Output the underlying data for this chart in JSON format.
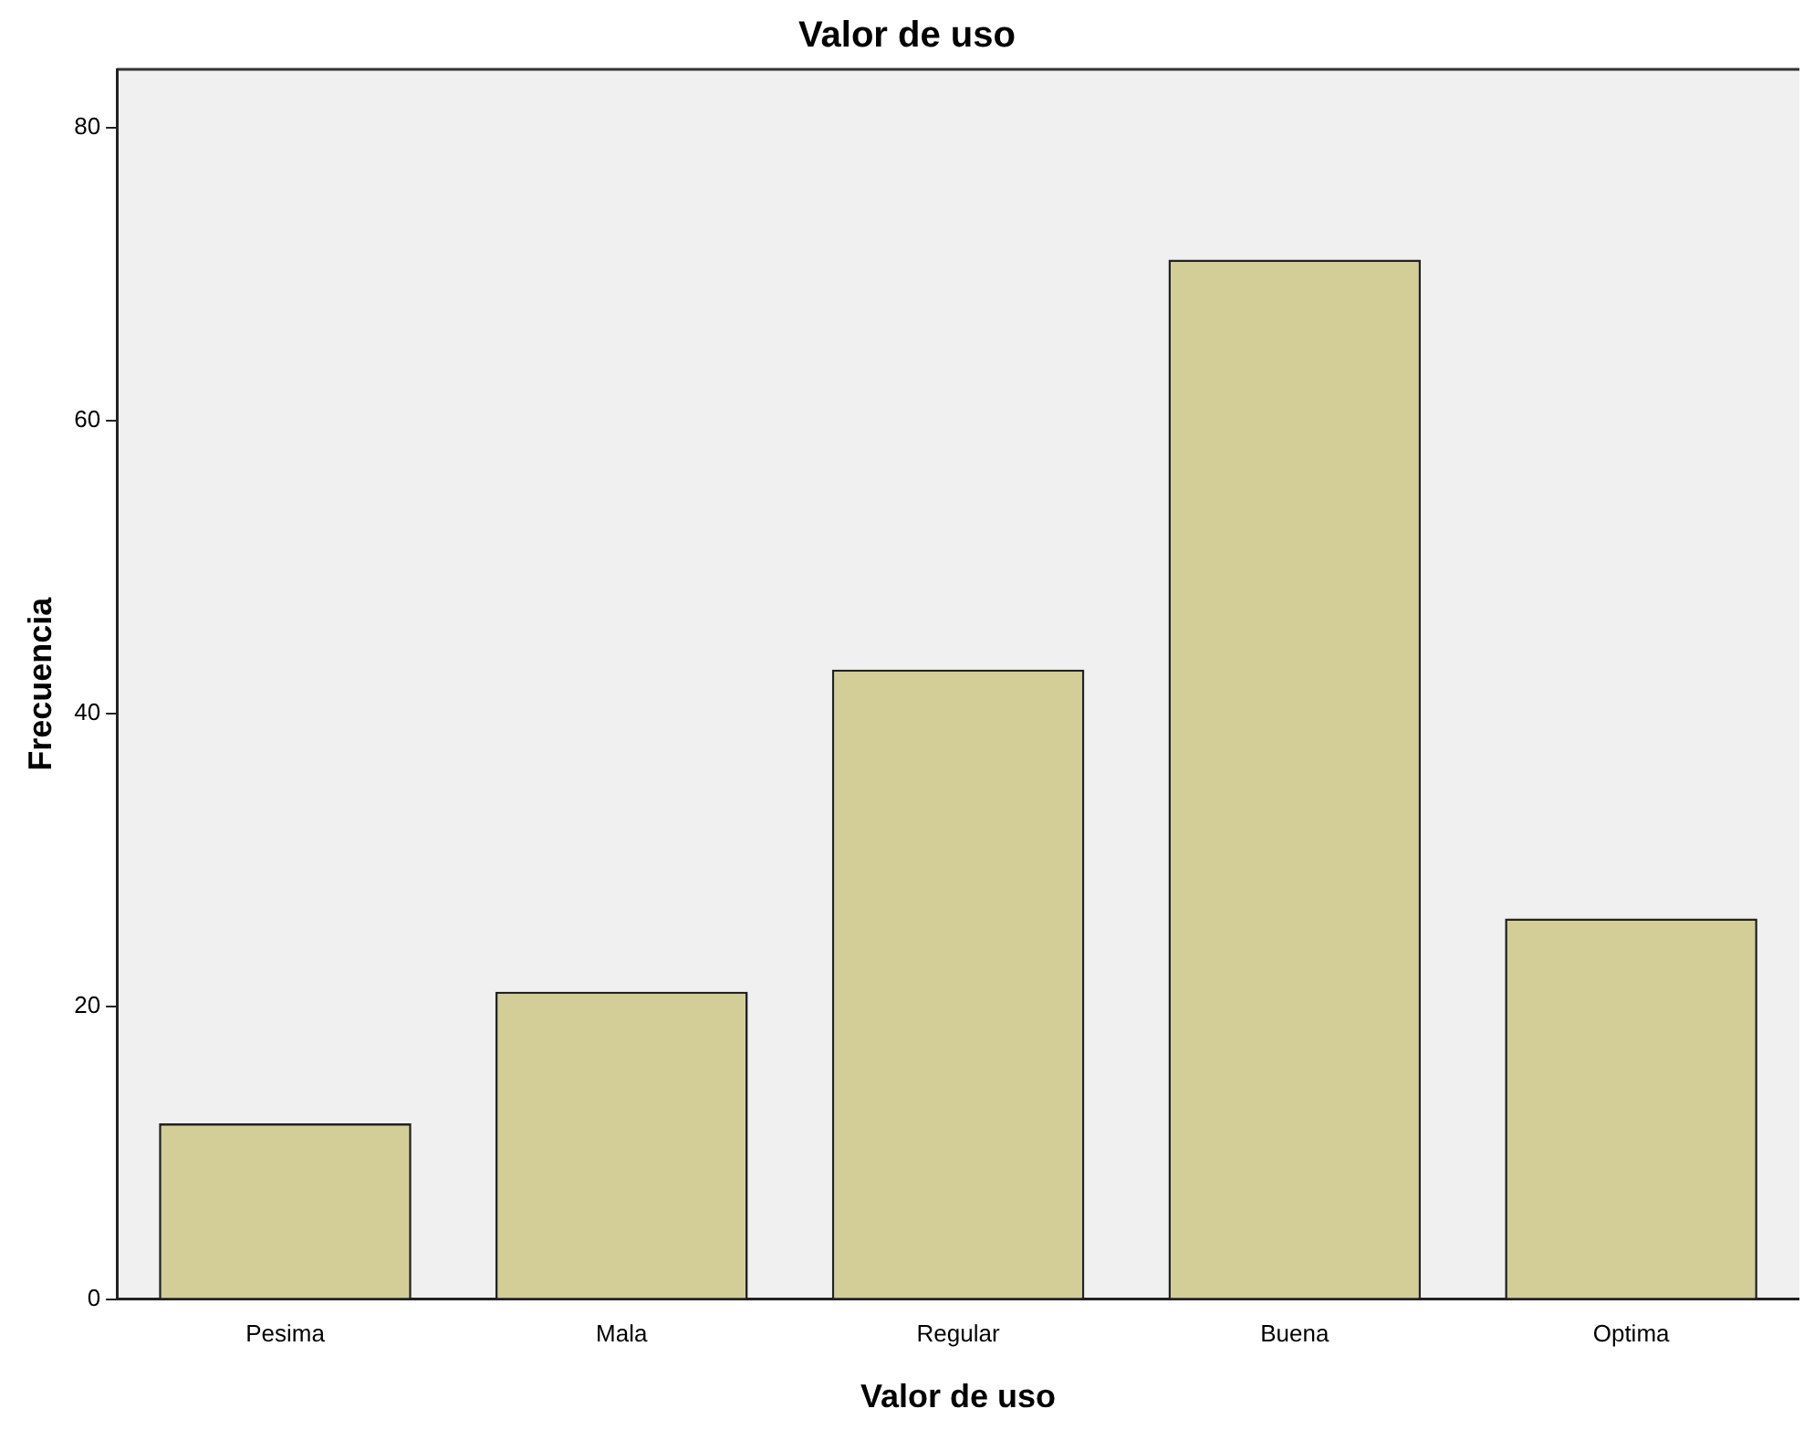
{
  "chart_data": {
    "type": "bar",
    "title": "Valor de uso",
    "xlabel": "Valor de uso",
    "ylabel": "Frecuencia",
    "categories": [
      "Pesima",
      "Mala",
      "Regular",
      "Buena",
      "Optima"
    ],
    "values": [
      12,
      21,
      43,
      71,
      26
    ],
    "color": "#d3ce97",
    "ylim": [
      0,
      84
    ],
    "yticks": [
      0,
      20,
      40,
      60,
      80
    ],
    "grid": false,
    "legend": false
  }
}
